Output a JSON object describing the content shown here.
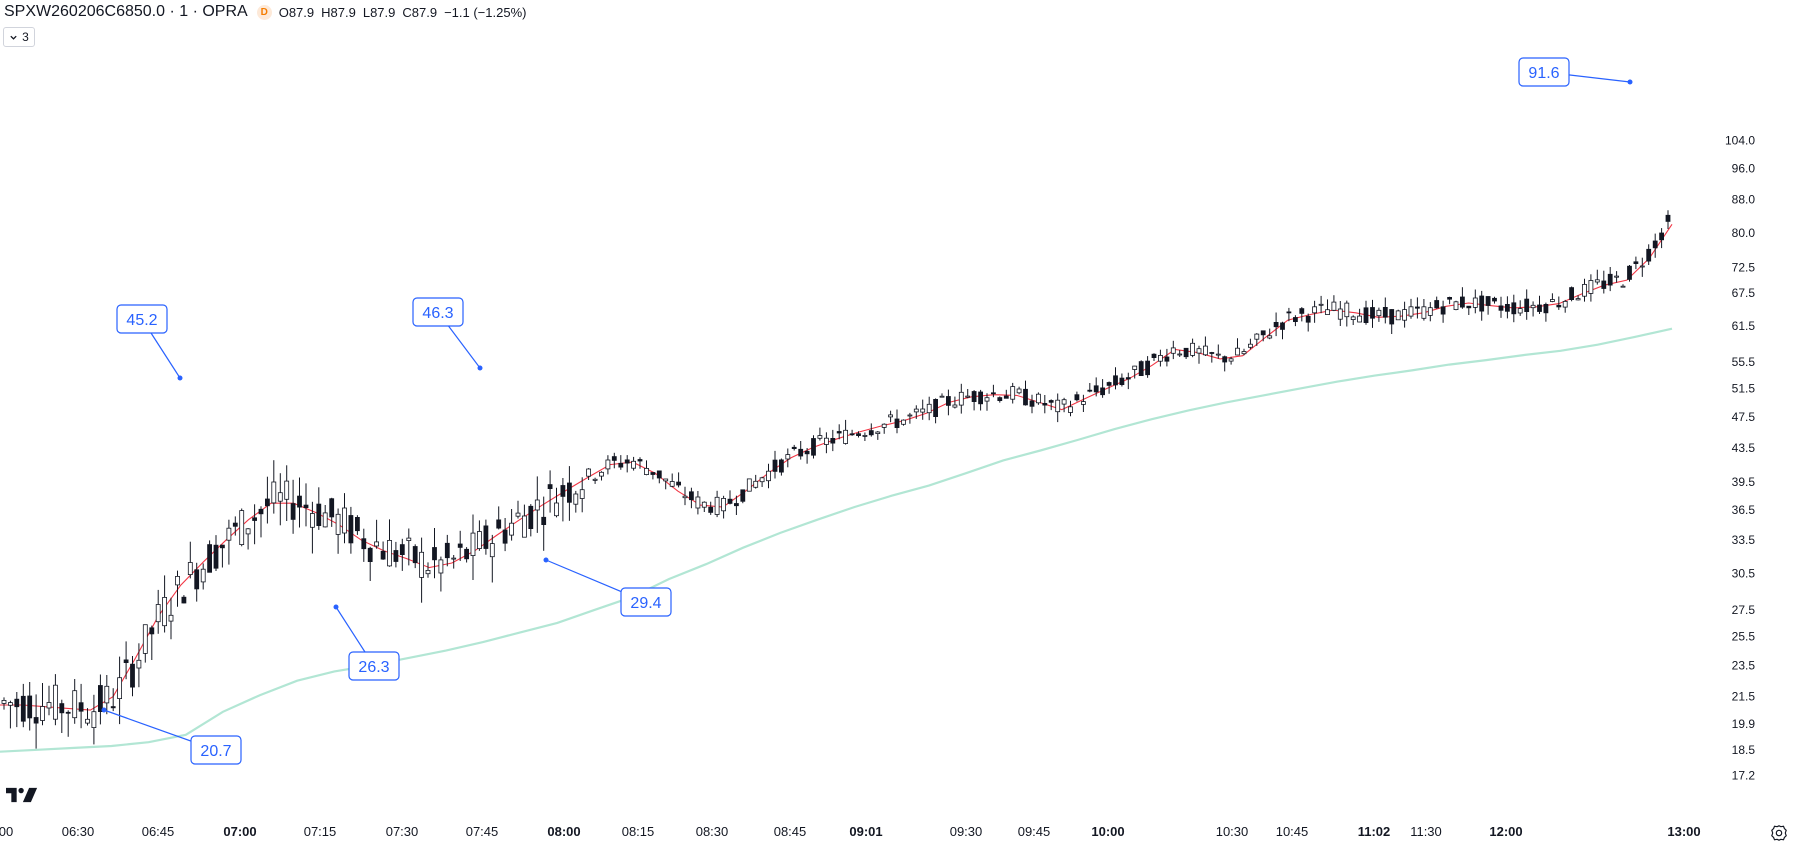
{
  "header": {
    "symbol": "SPXW260206C6850.0 · 1 · OPRA",
    "badge": "D",
    "ohlc": [
      {
        "key": "O",
        "value": "87.9"
      },
      {
        "key": "H",
        "value": "87.9"
      },
      {
        "key": "L",
        "value": "87.9"
      },
      {
        "key": "C",
        "value": "87.9"
      }
    ],
    "change": "−1.1 (−1.25%)"
  },
  "indicators_toggle": {
    "count": "3"
  },
  "icons": {
    "toggle": "chevron-down-icon",
    "logo": "tradingview-logo-icon",
    "settings": "gear-icon"
  },
  "colors": {
    "candle_up": "#ffffff",
    "candle_down": "#131722",
    "ema_fast": "#f23645",
    "ema_fast_alt": "#2962ff",
    "ema_slow": "#b2e6d4",
    "callout": "#2962ff"
  },
  "chart_data": {
    "type": "candlestick",
    "y_axis": {
      "scale": "log",
      "ticks": [
        "17.2",
        "18.5",
        "19.9",
        "21.5",
        "23.5",
        "25.5",
        "27.5",
        "30.5",
        "33.5",
        "36.5",
        "39.5",
        "43.5",
        "47.5",
        "51.5",
        "55.5",
        "61.5",
        "67.5",
        "72.5",
        "80.0",
        "88.0",
        "96.0",
        "104.0"
      ],
      "range": [
        16.6,
        114
      ]
    },
    "x_axis": {
      "ticks": [
        {
          "label": "00",
          "bold": false
        },
        {
          "label": "06:30",
          "bold": false
        },
        {
          "label": "06:45",
          "bold": false
        },
        {
          "label": "07:00",
          "bold": true
        },
        {
          "label": "07:15",
          "bold": false
        },
        {
          "label": "07:30",
          "bold": false
        },
        {
          "label": "07:45",
          "bold": false
        },
        {
          "label": "08:00",
          "bold": true
        },
        {
          "label": "08:15",
          "bold": false
        },
        {
          "label": "08:30",
          "bold": false
        },
        {
          "label": "08:45",
          "bold": false
        },
        {
          "label": "09:01",
          "bold": true
        },
        {
          "label": "09:30",
          "bold": false
        },
        {
          "label": "09:45",
          "bold": false
        },
        {
          "label": "10:00",
          "bold": true
        },
        {
          "label": "10:30",
          "bold": false
        },
        {
          "label": "10:45",
          "bold": false
        },
        {
          "label": "11:02",
          "bold": true
        },
        {
          "label": "11:30",
          "bold": false
        },
        {
          "label": "12:00",
          "bold": true
        },
        {
          "label": "13:00",
          "bold": true
        }
      ]
    },
    "series": [
      {
        "role": "ema_fast",
        "values": [
          21,
          21,
          20.9,
          20.8,
          20.7,
          21.5,
          24,
          27,
          29.5,
          31.5,
          33.5,
          35.5,
          37.2,
          37.2,
          36.2,
          35,
          33.5,
          32.5,
          31.8,
          31,
          31.4,
          32.5,
          34,
          35.5,
          37,
          38.5,
          40,
          41.5,
          41.8,
          40.5,
          38.5,
          37,
          36.8,
          38.5,
          40.5,
          42.3,
          43.6,
          44.6,
          45.5,
          46.3,
          47,
          48,
          49.5,
          50.3,
          50.6,
          50.5,
          49.5,
          48.5,
          50,
          51.5,
          53,
          55,
          57.5,
          57,
          56,
          56.5,
          59.5,
          62.5,
          63.5,
          64.3,
          63.8,
          63,
          63.2,
          63.8,
          65,
          65.6,
          65.1,
          64.7,
          64.9,
          65.5,
          67.3,
          69,
          70,
          74.5,
          82
        ]
      },
      {
        "role": "ema_slow",
        "values": [
          18.4,
          18.5,
          18.6,
          18.7,
          18.9,
          19.3,
          20.6,
          21.6,
          22.5,
          23.1,
          23.5,
          24,
          24.5,
          25.1,
          25.8,
          26.5,
          27.5,
          28.5,
          30,
          31.3,
          32.8,
          34.2,
          35.5,
          36.8,
          38,
          39.1,
          40.5,
          42,
          43.2,
          44.5,
          45.9,
          47.2,
          48.4,
          49.5,
          50.5,
          51.5,
          52.5,
          53.4,
          54.2,
          55.1,
          55.8,
          56.6,
          57.3,
          58.3,
          59.6,
          61
        ]
      }
    ],
    "callouts": [
      {
        "value": "45.2"
      },
      {
        "value": "46.3"
      },
      {
        "value": "29.4"
      },
      {
        "value": "26.3"
      },
      {
        "value": "20.7"
      },
      {
        "value": "91.6"
      }
    ]
  }
}
